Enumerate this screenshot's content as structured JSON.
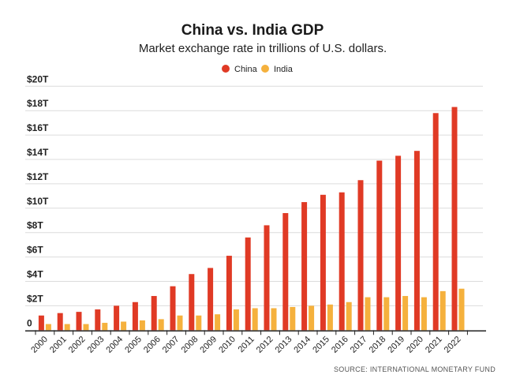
{
  "chart_data": {
    "type": "bar",
    "title": "China vs. India GDP",
    "subtitle": "Market exchange rate in trillions of U.S. dollars.",
    "source": "SOURCE: INTERNATIONAL MONETARY FUND",
    "legend_placement": "top-center",
    "grid": true,
    "ylim": [
      0,
      20
    ],
    "yticks": [
      0,
      2,
      4,
      6,
      8,
      10,
      12,
      14,
      16,
      18,
      20
    ],
    "ytick_labels": [
      "0",
      "$2T",
      "$4T",
      "$6T",
      "$8T",
      "$10T",
      "$12T",
      "$14T",
      "$16T",
      "$18T",
      "$20T"
    ],
    "categories": [
      "2000",
      "2001",
      "2002",
      "2003",
      "2004",
      "2005",
      "2006",
      "2007",
      "2008",
      "2009",
      "2010",
      "2011",
      "2012",
      "2013",
      "2014",
      "2015",
      "2016",
      "2017",
      "2018",
      "2019",
      "2020",
      "2021",
      "2022"
    ],
    "series": [
      {
        "name": "China",
        "color": "#e03a25",
        "values": [
          1.2,
          1.4,
          1.5,
          1.7,
          2.0,
          2.3,
          2.8,
          3.6,
          4.6,
          5.1,
          6.1,
          7.6,
          8.6,
          9.6,
          10.5,
          11.1,
          11.3,
          12.3,
          13.9,
          14.3,
          14.7,
          17.8,
          18.3
        ]
      },
      {
        "name": "India",
        "color": "#f5b13d",
        "values": [
          0.5,
          0.5,
          0.5,
          0.6,
          0.7,
          0.8,
          0.9,
          1.2,
          1.2,
          1.3,
          1.7,
          1.8,
          1.8,
          1.9,
          2.0,
          2.1,
          2.3,
          2.7,
          2.7,
          2.8,
          2.7,
          3.2,
          3.4
        ]
      }
    ]
  }
}
